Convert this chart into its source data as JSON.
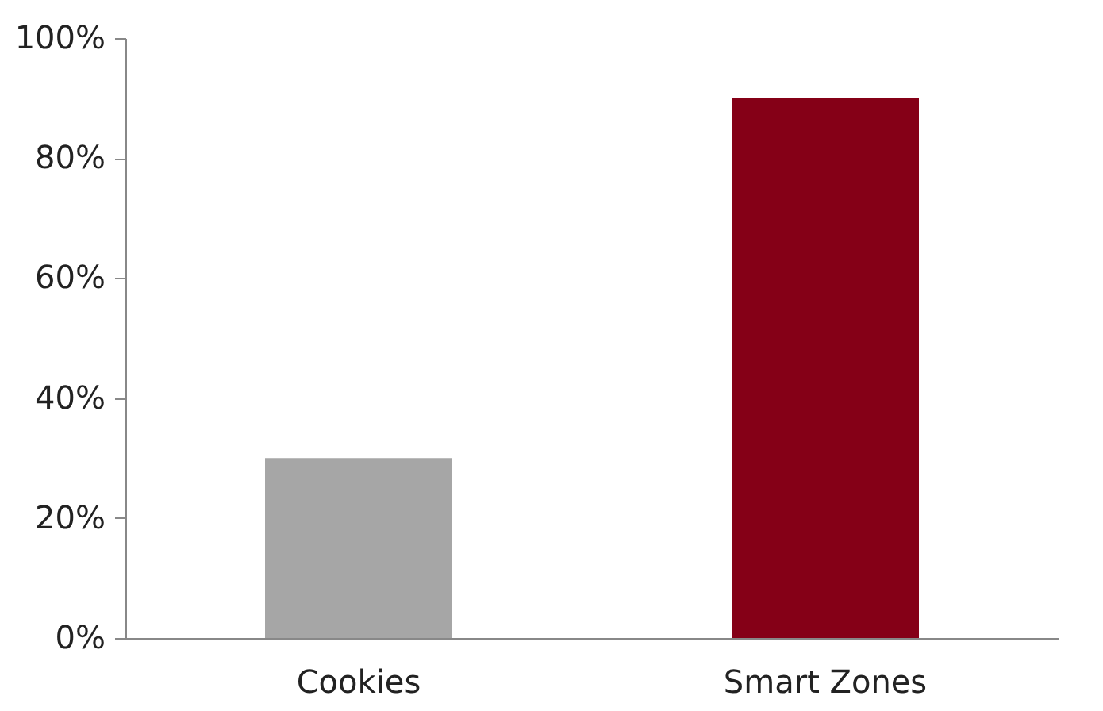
{
  "chart_data": {
    "type": "bar",
    "categories": [
      "Cookies",
      "Smart Zones"
    ],
    "values": [
      30,
      90
    ],
    "colors": [
      "#a6a6a6",
      "#850017"
    ],
    "ylim": [
      0,
      100
    ],
    "yticks": [
      {
        "value": 0,
        "label": "0%"
      },
      {
        "value": 20,
        "label": "20%"
      },
      {
        "value": 40,
        "label": "40%"
      },
      {
        "value": 60,
        "label": "60%"
      },
      {
        "value": 80,
        "label": "80%"
      },
      {
        "value": 100,
        "label": "100%"
      }
    ],
    "grid": false
  }
}
